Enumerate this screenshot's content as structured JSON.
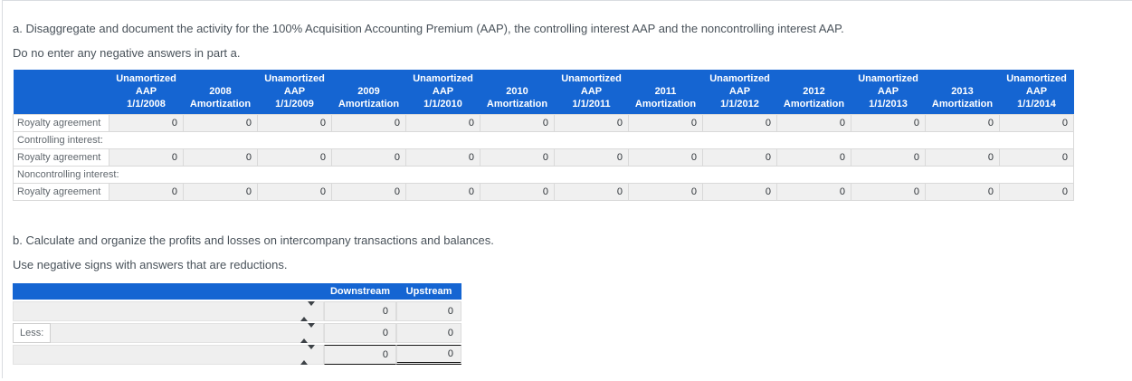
{
  "part_a": {
    "instruction": "a. Disaggregate and document the activity for the 100% Acquisition Accounting Premium (AAP), the controlling interest AAP and the noncontrolling interest AAP.",
    "note": "Do no enter any negative answers in part a.",
    "table": {
      "header": [
        [
          "Unamortized",
          "AAP",
          "1/1/2008"
        ],
        [
          "2008",
          "Amortization"
        ],
        [
          "Unamortized",
          "AAP",
          "1/1/2009"
        ],
        [
          "2009",
          "Amortization"
        ],
        [
          "Unamortized",
          "AAP",
          "1/1/2010"
        ],
        [
          "2010",
          "Amortization"
        ],
        [
          "Unamortized",
          "AAP",
          "1/1/2011"
        ],
        [
          "2011",
          "Amortization"
        ],
        [
          "Unamortized",
          "AAP",
          "1/1/2012"
        ],
        [
          "2012",
          "Amortization"
        ],
        [
          "Unamortized",
          "AAP",
          "1/1/2013"
        ],
        [
          "2013",
          "Amortization"
        ],
        [
          "Unamortized",
          "AAP",
          "1/1/2014"
        ]
      ],
      "rows": [
        {
          "type": "data",
          "label": "Royalty agreement",
          "values": [
            "0",
            "0",
            "0",
            "0",
            "0",
            "0",
            "0",
            "0",
            "0",
            "0",
            "0",
            "0",
            "0"
          ]
        },
        {
          "type": "section",
          "label": "Controlling interest:"
        },
        {
          "type": "data",
          "label": "Royalty agreement",
          "values": [
            "0",
            "0",
            "0",
            "0",
            "0",
            "0",
            "0",
            "0",
            "0",
            "0",
            "0",
            "0",
            "0"
          ]
        },
        {
          "type": "section",
          "label": "Noncontrolling interest:"
        },
        {
          "type": "data",
          "label": "Royalty agreement",
          "values": [
            "0",
            "0",
            "0",
            "0",
            "0",
            "0",
            "0",
            "0",
            "0",
            "0",
            "0",
            "0",
            "0"
          ]
        }
      ]
    }
  },
  "part_b": {
    "instruction": "b. Calculate and organize the profits and losses on intercompany transactions and balances.",
    "note": "Use negative signs with answers that are reductions.",
    "table": {
      "columns": [
        "Downstream",
        "Upstream"
      ],
      "rows": [
        {
          "label": "",
          "select_value": "",
          "downstream": "0",
          "upstream": "0",
          "total": false
        },
        {
          "label": "Less:",
          "select_value": "",
          "downstream": "0",
          "upstream": "0",
          "total": false
        },
        {
          "label": "",
          "select_value": "",
          "downstream": "0",
          "upstream": "0",
          "total": true
        }
      ]
    }
  },
  "colors": {
    "header_blue": "#1565d2",
    "input_cell_bg": "#f0f0f0",
    "cell_border": "#d9d9d9",
    "body_text": "#49525a",
    "total_rule": "#141414"
  }
}
